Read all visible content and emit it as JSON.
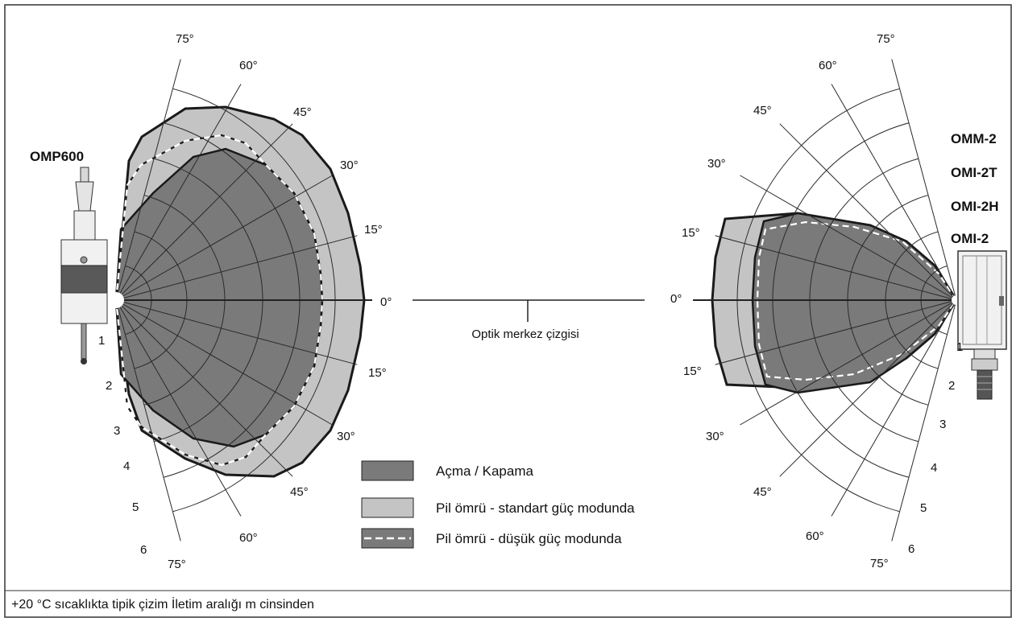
{
  "left_device": {
    "name": "OMP600"
  },
  "right_devices": [
    "OMM-2",
    "OMI-2T",
    "OMI-2H",
    "OMI-2"
  ],
  "angle_labels": {
    "left": [
      "75°",
      "60°",
      "45°",
      "30°",
      "15°",
      "0°",
      "15°",
      "30°",
      "45°",
      "60°",
      "75°"
    ],
    "right": [
      "75°",
      "60°",
      "45°",
      "30°",
      "15°",
      "0°",
      "15°",
      "30°",
      "45°",
      "60°",
      "75°"
    ]
  },
  "range_labels": {
    "left": [
      "1",
      "2",
      "3",
      "4",
      "5",
      "6"
    ],
    "right": [
      "1",
      "2",
      "3",
      "4",
      "5",
      "6"
    ]
  },
  "center_line_label": "Optik merkez çizgisi",
  "legend": [
    {
      "label": "Açma / Kapama",
      "color": "#7a7a7a",
      "style": "solid"
    },
    {
      "label": "Pil ömrü - standart güç modunda",
      "color": "#c4c4c4",
      "style": "solid"
    },
    {
      "label": "Pil ömrü - düşük güç modunda",
      "color": "#7a7a7a",
      "style": "dashed-white"
    }
  ],
  "footnote": "+20 °C sıcaklıkta tipik çizim İletim aralığı m cinsinden"
}
